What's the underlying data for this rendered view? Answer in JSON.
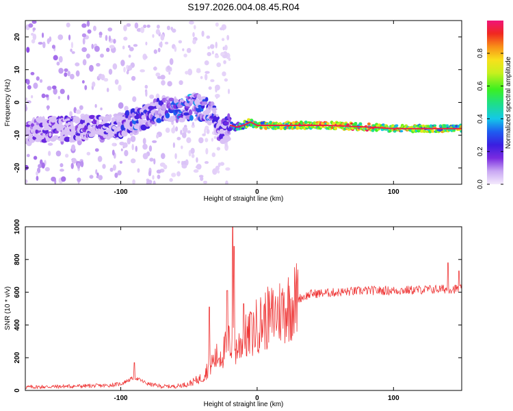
{
  "figure_title": "S197.2026.004.08.45.R04",
  "chart_data": [
    {
      "type": "heatmap",
      "title": "S197.2026.004.08.45.R04",
      "xlabel": "Height of straight line (km)",
      "ylabel": "Frequency (Hz)",
      "xlim": [
        -170,
        150
      ],
      "ylim": [
        -25,
        25
      ],
      "x_ticks": [
        -100,
        0,
        100
      ],
      "y_ticks": [
        -20,
        -10,
        0,
        10,
        20
      ],
      "ridge_frequency_profile": {
        "x": [
          -170,
          -150,
          -130,
          -110,
          -90,
          -70,
          -55,
          -45,
          -38,
          -32,
          -28,
          -24,
          -20,
          -15,
          -10,
          -5,
          0,
          20,
          50,
          80,
          100,
          120,
          150
        ],
        "frequency": [
          -9,
          -8,
          -8,
          -7.5,
          -6,
          -2,
          -2,
          -1,
          -2,
          -4,
          -8,
          -9,
          -7,
          -7.5,
          -7,
          -6,
          -7,
          -7,
          -7,
          -7.5,
          -8,
          -8,
          -8
        ],
        "amplitude": [
          0.15,
          0.2,
          0.2,
          0.22,
          0.3,
          0.3,
          0.35,
          0.38,
          0.3,
          0.3,
          0.22,
          0.2,
          0.35,
          0.5,
          0.6,
          0.7,
          0.8,
          0.9,
          0.95,
          0.9,
          0.85,
          0.8,
          0.75
        ]
      },
      "colorbar": {
        "label": "Normalized spectral amplitude",
        "range": [
          0,
          1
        ],
        "ticks": [
          "0.0",
          "0.2",
          "0.4",
          "0.6",
          "0.8"
        ],
        "tick_values": [
          0,
          0.2,
          0.4,
          0.6,
          0.8
        ]
      }
    },
    {
      "type": "line",
      "xlabel": "Height of straight line (km)",
      "ylabel": "SNR (10 * v/v)",
      "xlim": [
        -170,
        150
      ],
      "ylim": [
        0,
        1000
      ],
      "x_ticks": [
        -100,
        0,
        100
      ],
      "y_ticks": [
        0,
        200,
        400,
        600,
        800,
        1000
      ],
      "color": "#ee3333",
      "trend": {
        "x": [
          -170,
          -140,
          -110,
          -100,
          -95,
          -90,
          -85,
          -80,
          -70,
          -60,
          -50,
          -40,
          -35,
          -30,
          -25,
          -20,
          -18,
          -15,
          -10,
          -5,
          0,
          10,
          20,
          30,
          40,
          60,
          80,
          100,
          120,
          140,
          150
        ],
        "y": [
          20,
          25,
          30,
          40,
          60,
          80,
          60,
          40,
          25,
          25,
          40,
          80,
          150,
          200,
          230,
          300,
          280,
          250,
          320,
          330,
          400,
          450,
          500,
          560,
          590,
          600,
          610,
          610,
          615,
          620,
          620
        ]
      },
      "spikes": [
        {
          "x": -90,
          "y": 170
        },
        {
          "x": -35,
          "y": 510
        },
        {
          "x": -22,
          "y": 610
        },
        {
          "x": -18,
          "y": 1000
        },
        {
          "x": -17,
          "y": 880
        },
        {
          "x": -10,
          "y": 530
        },
        {
          "x": -5,
          "y": 480
        },
        {
          "x": 10,
          "y": 500
        },
        {
          "x": 140,
          "y": 780
        },
        {
          "x": 148,
          "y": 730
        }
      ]
    }
  ]
}
